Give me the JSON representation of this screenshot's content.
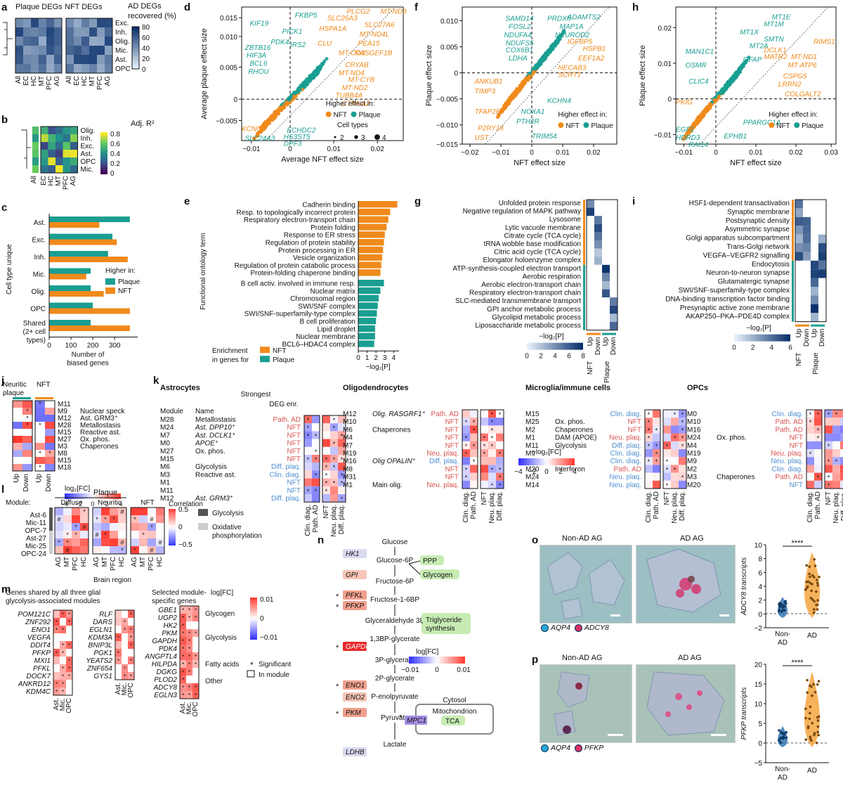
{
  "panel_letters": [
    "a",
    "b",
    "c",
    "d",
    "e",
    "f",
    "g",
    "h",
    "i",
    "j",
    "k",
    "l",
    "m",
    "n",
    "o",
    "p"
  ],
  "a": {
    "title_plaque": "Plaque DEGs",
    "title_nft": "NFT DEGs",
    "rows": [
      "Exc.",
      "Inh.",
      "Olig.",
      "Mic.",
      "Ast.",
      "OPC"
    ],
    "cols": [
      "All",
      "EC",
      "HC",
      "MT",
      "PFC",
      "AG"
    ],
    "colorbar_label": "AD DEGs recovered (%)",
    "colorbar_ticks": [
      "80",
      "60",
      "40",
      "20",
      "0"
    ]
  },
  "b": {
    "rows": [
      "Olig.",
      "Inh.",
      "Exc.",
      "Ast.",
      "OPC",
      "Mic."
    ],
    "cols": [
      "All",
      "EC",
      "HC",
      "MT",
      "PFC",
      "AG"
    ],
    "colorbar_label": "Adj. R²",
    "colorbar_ticks": [
      "0.8",
      "0.6",
      "0.4",
      "0.2",
      "0"
    ]
  },
  "c": {
    "chart_data": {
      "type": "bar",
      "orientation": "horizontal",
      "categories": [
        "Ast.",
        "Exc.",
        "Inh.",
        "Mic.",
        "Olig.",
        "OPC",
        "Shared (2+ cell types)"
      ],
      "series": [
        {
          "name": "Plaque",
          "color": "#1a9e91",
          "values": [
            370,
            290,
            270,
            190,
            190,
            200,
            190
          ]
        },
        {
          "name": "NFT",
          "color": "#f08a1c",
          "values": [
            230,
            310,
            360,
            170,
            250,
            370,
            370
          ]
        }
      ],
      "xlabel": "Number of biased genes",
      "ylabel": "Cell type unique",
      "xticks": [
        "0",
        "100",
        "200",
        "300"
      ],
      "xlim": [
        0,
        380
      ],
      "legend_title": "Higher in:",
      "legend": [
        "Plaque",
        "NFT"
      ]
    }
  },
  "d": {
    "xlabel": "Average NFT effect size",
    "ylabel": "Average plaque effect size",
    "xticks": [
      "−0.01",
      "0",
      "0.01",
      "0.02"
    ],
    "yticks": [
      "0.015",
      "0.010",
      "0.005",
      "0",
      "−0.005"
    ],
    "legend_title": "Higher effect in:",
    "legend": [
      "NFT",
      "Plaque"
    ],
    "size_title": "Cell types",
    "sizes": [
      "2",
      "3",
      "4"
    ],
    "teal_genes": [
      "FKBP5",
      "KIF19",
      "PICK1",
      "PDK4",
      "IRS2",
      "ZBTB16",
      "HIF3A",
      "BCL6",
      "RHOU",
      "ECHDC2",
      "HS3ST5",
      "SLC24A3",
      "DPF3"
    ],
    "orange_genes": [
      "PLCG2",
      "MT-ND3",
      "SLC26A3",
      "SLC27A6",
      "HSPA1A",
      "MT-ND4L",
      "CLU",
      "PEA15",
      "MT-CO3",
      "RASGEF1B",
      "CRYAB",
      "MT-ND4",
      "MT-CYB",
      "MT-ND2",
      "TUBB4A",
      "CTNNA2",
      "KCNQ3"
    ]
  },
  "e": {
    "ylabel": "Functional ontology term",
    "xlabel": "−log₂[P]",
    "xticks": [
      "0",
      "1",
      "2",
      "3",
      "4"
    ],
    "legend_title": "Enrichment in genes for",
    "legend": [
      "NFT",
      "Plaque"
    ],
    "chart_data": {
      "type": "bar",
      "orientation": "horizontal",
      "categories": [
        "Cadherin binding",
        "Resp. to topologically incorrect protein",
        "Respiratory electron-transport chain",
        "Protein folding",
        "Response to ER stress",
        "Regulation of protein stability",
        "Protein processing in ER",
        "Vesicle organization",
        "Regulation of protein catabolic process",
        "Protein-folding chaperone binding",
        "B cell activ. involved in immune resp.",
        "Nuclear matrix",
        "Chromosomal region",
        "SWI/SNF complex",
        "SWI/SNF-superfamily-type complex",
        "B cell proliferation",
        "Lipid droplet",
        "Nuclear membrane",
        "BCL6–HDAC4 complex"
      ],
      "values": [
        4.4,
        3.6,
        3.4,
        3.2,
        3.0,
        2.9,
        2.8,
        2.7,
        2.6,
        2.5,
        2.9,
        2.5,
        2.3,
        2.2,
        2.1,
        2.0,
        1.9,
        1.9,
        1.8
      ],
      "groups": [
        "NFT",
        "NFT",
        "NFT",
        "NFT",
        "NFT",
        "NFT",
        "NFT",
        "NFT",
        "NFT",
        "NFT",
        "Plaque",
        "Plaque",
        "Plaque",
        "Plaque",
        "Plaque",
        "Plaque",
        "Plaque",
        "Plaque",
        "Plaque"
      ],
      "xlim": [
        0,
        4.6
      ]
    }
  },
  "f": {
    "xlabel": "NFT effect size",
    "ylabel": "Plaque effect size",
    "xticks": [
      "−0.02",
      "−0.01",
      "0",
      "0.01",
      "0.02"
    ],
    "yticks": [
      "0.010",
      "0.005",
      "0",
      "−0.005",
      "−0.010",
      "−0.015"
    ],
    "legend_title": "Higher effect in:",
    "legend": [
      "NFT",
      "Plaque"
    ],
    "teal_genes": [
      "SAMD14",
      "PRDX5",
      "ADAMTS2",
      "FOSL2",
      "MAP1A",
      "NDUFA4",
      "NEUROD2",
      "NDUFS5",
      "COX6B1",
      "LDHA",
      "KCHN4",
      "NOXA1",
      "PTH2R",
      "TRIM54"
    ],
    "orange_genes": [
      "IGFBP5",
      "HSPB1",
      "EEF1A2",
      "NECAB3",
      "SCRT1",
      "ANKUB1",
      "TIMP3",
      "TFAP2E",
      "P2RY14",
      "UST"
    ]
  },
  "g": {
    "terms": [
      "Unfolded protein response",
      "Negative regulation of MAPK pathway",
      "Lysosome",
      "Lytic vacuole membrane",
      "Citrate cycle (TCA cycle)",
      "tRNA wobble base modification",
      "Citric acid cycle (TCA cycle)",
      "Elongator holoenzyme complex",
      "ATP-synthesis-coupled electron transport",
      "Aerobic respiration",
      "Aerobic electron-transport chain",
      "Respiratory electron-transport chain",
      "SLC-mediated transmembrane transport",
      "GPI anchor metabolic process",
      "Glycolipid metabolic process",
      "Liposaccharide metabolic process"
    ],
    "cols": [
      "Up",
      "Down",
      "Up",
      "Down"
    ],
    "groups": [
      "NFT",
      "Plaque"
    ],
    "colorbar_label": "−log₂[P]",
    "colorbar_ticks": [
      "0",
      "2",
      "4",
      "6",
      "8"
    ]
  },
  "h": {
    "xlabel": "NFT effect size",
    "ylabel": "Plaque effect size",
    "xticks": [
      "−0.01",
      "0",
      "0.01",
      "0.02",
      "0.03"
    ],
    "yticks": [
      "0.02",
      "0.01",
      "0",
      "−0.01"
    ],
    "legend_title": "Higher effect in:",
    "legend": [
      "NFT",
      "Plaque"
    ],
    "teal_genes": [
      "MT1E",
      "MT1M",
      "MT1X",
      "SMTN",
      "MT2A",
      "MAN1C1",
      "GFAP",
      "OSMR",
      "CLIC4",
      "PPARGC1A",
      "EGF1",
      "HDRD3",
      "EPHB1",
      "RAI14"
    ],
    "orange_genes": [
      "RIMS1",
      "DCLK1",
      "MATR2",
      "MT-ND1",
      "MT-ATP6",
      "CSPG5",
      "LRRN2",
      "COLGALT2",
      "PKIG"
    ]
  },
  "i": {
    "terms": [
      "HSF1-dependent transactivation",
      "Synaptic membrane",
      "Postsynaptic density",
      "Asymmetric synapse",
      "Golgi apparatus subcompartment",
      "Trans-Golgi network",
      "VEGFA–VEGFR2 signalling",
      "Endocytosis",
      "Neuron-to-neuron synapse",
      "Glutamatergic synapse",
      "SWI/SNF-superfamily-type complex",
      "DNA-binding transcription factor binding",
      "Presynaptic active zone membrane",
      "AKAP250–PKA–PDE4D complex"
    ],
    "cols": [
      "Up",
      "Down",
      "Up",
      "Down"
    ],
    "groups": [
      "NFT",
      "Plaque"
    ],
    "colorbar_label": "−log₂[P]",
    "colorbar_ticks": [
      "0",
      "2",
      "4",
      "6"
    ]
  },
  "j": {
    "title_plaque": "Neuritic plaque",
    "title_nft": "NFT",
    "modules": [
      "M11",
      "M9",
      "M12",
      "M28",
      "M15",
      "M27",
      "M3",
      "M8",
      "M15",
      "M18"
    ],
    "names": [
      "Nuclear speck",
      "Ast. GRM3⁺",
      "Metallostasis",
      "Reactive ast.",
      "Ox. phos.",
      "Chaperones"
    ],
    "cols": [
      "Up",
      "Down",
      "Up",
      "Down"
    ],
    "colorbar_label": "log₂[FC]",
    "colorbar_ticks": [
      "−4",
      "−2",
      "0",
      "2",
      "4"
    ]
  },
  "k": {
    "header_strongest": "Strongest enr.",
    "header_deg": "DEG enr.",
    "col_module": "Module",
    "col_name": "Name",
    "colorbar_label": "−log₂[FC]",
    "colorbar_ticks": [
      "−4",
      "−2",
      "0",
      "2",
      "4"
    ],
    "bottom_cols": [
      "Clin. diag.",
      "Path. AD",
      "NFT",
      "Neu. plaq.",
      "Diff. plaq."
    ],
    "astrocytes": {
      "title": "Astrocytes",
      "modules": [
        "M28",
        "M24",
        "M7",
        "M0",
        "M27",
        "M15",
        "M6",
        "M3",
        "M1",
        "M11",
        "M12"
      ],
      "names": [
        "Metallostasis",
        "Ast. DPP10⁺",
        "Ast. DCLK1⁺",
        "APOE⁺",
        "Ox. phos.",
        "",
        "Glycolysis",
        "Reactive ast.",
        "",
        "",
        "Ast. GRM3⁺"
      ],
      "enr": [
        "Path. AD",
        "NFT",
        "NFT",
        "NFT",
        "NFT",
        "NFT",
        "Diff. plaq.",
        "Clin. diag.",
        "NFT",
        "NFT",
        "Diff. plaq."
      ]
    },
    "oligodendrocytes": {
      "title": "Oligodendrocytes",
      "modules": [
        "M12",
        "M10",
        "M6",
        "M4",
        "M7",
        "M19",
        "M16",
        "M8",
        "M31",
        "M1"
      ],
      "names": [
        "Olig. RASGRF1⁺",
        "",
        "Chaperones",
        "",
        "",
        "",
        "Olig OPALIN⁺",
        "",
        "",
        "Main olig."
      ],
      "enr": [
        "Path. AD",
        "NFT",
        "NFT",
        "NFT",
        "NFT",
        "Neu. plaq.",
        "Diff. plaq.",
        "NFT",
        "NFT",
        "Neu. plaq."
      ]
    },
    "microglia": {
      "title": "Microglia/immune cells",
      "modules": [
        "M15",
        "M25",
        "M2",
        "M1",
        "M11",
        "M9",
        "M3",
        "M20",
        "M24",
        "M14"
      ],
      "names": [
        "",
        "Ox. phos.",
        "Chaperones",
        "DAM (APOE)",
        "Glycolysis",
        "",
        "",
        "Interferon",
        "",
        ""
      ],
      "enr": [
        "Clin. diag.",
        "NFT",
        "NFT",
        "Neu. plaq.",
        "Diff. plaq.",
        "Clin. diag.",
        "Clin. diag.",
        "Path. AD",
        "Neu. plaq.",
        "Neu. plaq."
      ]
    },
    "opcs": {
      "title": "OPCs",
      "modules": [
        "M0",
        "M10",
        "M16",
        "M24",
        "M4",
        "M19",
        "M9",
        "M2",
        "M3",
        "M20"
      ],
      "names": [
        "",
        "",
        "",
        "Ox. phos.",
        "",
        "",
        "",
        "",
        "Chaperones",
        ""
      ],
      "enr": [
        "Clin. diag.",
        "Path. AD",
        "Path. AD",
        "NFT",
        "NFT",
        "Neu. plaq.",
        "Neu. plaq.",
        "Clin. diag.",
        "Path. AD",
        "NFT"
      ]
    }
  },
  "l": {
    "module_label": "Module:",
    "rows": [
      "Ast-6",
      "Mic-11",
      "OPC-7",
      "Ast-27",
      "Mic-25",
      "OPC-24"
    ],
    "groups": [
      "Plaque",
      "Diffuse",
      "Neuritic",
      "NFT"
    ],
    "cols": [
      "AG",
      "MT",
      "PFC",
      "HC"
    ],
    "xlabel": "Brain region",
    "colorbar_label": "Correlation",
    "colorbar_ticks": [
      "0.5",
      "0",
      "−0.5"
    ],
    "legend": [
      "Glycolysis",
      "Oxidative phosphorylation"
    ]
  },
  "m": {
    "title_left": "Genes shared by all three glial glycolysis-associated modules",
    "title_right": "Selected module-specific genes",
    "genes_col1": [
      "POM121C",
      "ZNF292",
      "ENO1",
      "VEGFA",
      "DDIT4",
      "PFKP",
      "MXI1",
      "PFKL",
      "DOCK7",
      "ANKRD12",
      "KDM4C"
    ],
    "genes_col2": [
      "RLF",
      "DARS",
      "EGLN1",
      "KDM3A",
      "BNIP3L",
      "PGK1",
      "YEATS2",
      "ZNF654",
      "GYS1"
    ],
    "genes_col3": [
      "GBE1",
      "UGP2",
      "HK2",
      "PKM",
      "GAPDH",
      "PDK4",
      "ANGPTL4",
      "HILPDA",
      "DGKG",
      "PLOD2",
      "ADCY8",
      "EGLN3"
    ],
    "categories": [
      "Glycogen",
      "Glycolysis",
      "Fatty acids",
      "Other"
    ],
    "cols": [
      "Ast.",
      "Mic.",
      "OPC"
    ],
    "colorbar_label": "log[FC]",
    "colorbar_ticks": [
      "0.01",
      "0",
      "−0.01"
    ],
    "legend": [
      "Significant",
      "In module"
    ]
  },
  "n": {
    "nodes": [
      "Glucose",
      "Glucose-6P",
      "Fructose-6P",
      "Fructose-1-6BP",
      "Glyceraldehyde 3P",
      "1,3BP-glycerate",
      "3P-glycerate",
      "2P-glycerate",
      "P-enolpyruvate",
      "Pyruvate",
      "Lactate"
    ],
    "enzymes": [
      "HK1",
      "GPI",
      "PFKL",
      "PFKP",
      "GAPDH",
      "ENO1",
      "ENO2",
      "PKM",
      "MPC1",
      "LDHB"
    ],
    "side": [
      "PPP",
      "Glycogen",
      "Triglyceride synthesis",
      "TCA"
    ],
    "cytosol": "Cytosol",
    "mito": "Mitochondrion",
    "colorbar_label": "log[FC]",
    "colorbar_ticks": [
      "−0.01",
      "0",
      "0.01"
    ]
  },
  "o": {
    "img1": "Non-AD AG",
    "img2": "AD AG",
    "legend": [
      "AQP4",
      "ADCY8"
    ],
    "ylabel": "ADCY8 transcripts",
    "yticks": [
      "10",
      "8",
      "6",
      "4",
      "2",
      "0",
      "−2"
    ],
    "xcats": [
      "Non-AD",
      "AD"
    ],
    "sig": "****"
  },
  "p": {
    "img1": "Non-AD AG",
    "img2": "AD AG",
    "legend": [
      "AQP4",
      "PFKP"
    ],
    "ylabel": "PFKP transcripts",
    "yticks": [
      "20",
      "15",
      "10",
      "5",
      "0",
      "−5"
    ],
    "xcats": [
      "Non-AD",
      "AD"
    ],
    "sig": "****"
  },
  "colors": {
    "nft": "#f08a1c",
    "plaque": "#1a9e91",
    "up": "#d9534f",
    "down": "#3b5bdb"
  }
}
